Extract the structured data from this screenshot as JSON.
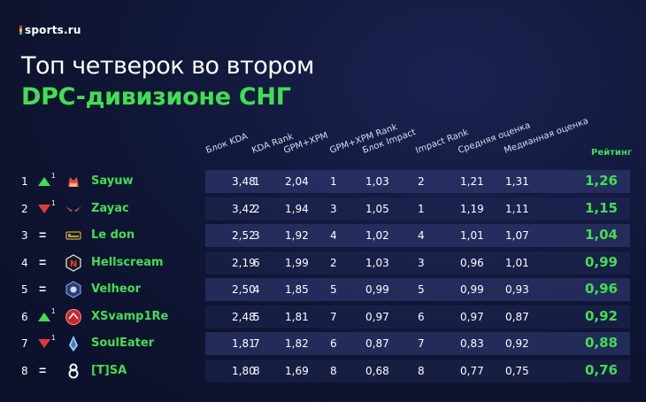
{
  "brand": {
    "name": "sports.ru"
  },
  "title": {
    "line1": "Топ четверок во втором",
    "line2": "DPC-дивизионе СНГ"
  },
  "columns": [
    "Блок KDA",
    "KDA Rank",
    "GPM+XPM",
    "GPM+XPM Rank",
    "Блок Impact",
    "Impact Rank",
    "Средняя оценка",
    "Медианная оценка"
  ],
  "rating_header": "Рейтинг",
  "colors": {
    "accent_green": "#3fe04f",
    "up": "#3fe04f",
    "down": "#e53935",
    "background": "#0f1533"
  },
  "rows": [
    {
      "rank": "1",
      "trend": "up",
      "delta": "1",
      "team_icon": "team-logo-icon",
      "player": "Sayuw",
      "values": [
        "3,48",
        "1",
        "2,04",
        "1",
        "1,03",
        "2",
        "1,21",
        "1,31"
      ],
      "rating": "1,26"
    },
    {
      "rank": "2",
      "trend": "down",
      "delta": "1",
      "team_icon": "team-logo-icon",
      "player": "Zayac",
      "values": [
        "3,42",
        "2",
        "1,94",
        "3",
        "1,05",
        "1",
        "1,19",
        "1,11"
      ],
      "rating": "1,15"
    },
    {
      "rank": "3",
      "trend": "same",
      "delta": "",
      "team_icon": "five-team-logo-icon",
      "player": "Le don",
      "values": [
        "2,52",
        "3",
        "1,92",
        "4",
        "1,02",
        "4",
        "1,01",
        "1,07"
      ],
      "rating": "1,04"
    },
    {
      "rank": "4",
      "trend": "same",
      "delta": "",
      "team_icon": "nigma-logo-icon",
      "player": "Hellscream",
      "values": [
        "2,19",
        "6",
        "1,99",
        "2",
        "1,03",
        "3",
        "0,96",
        "1,01"
      ],
      "rating": "0,99"
    },
    {
      "rank": "5",
      "trend": "same",
      "delta": "",
      "team_icon": "team-logo-icon",
      "player": "Velheor",
      "values": [
        "2,50",
        "4",
        "1,85",
        "5",
        "0,99",
        "5",
        "0,99",
        "0,93"
      ],
      "rating": "0,96"
    },
    {
      "rank": "6",
      "trend": "up",
      "delta": "1",
      "team_icon": "team-logo-icon",
      "player": "XSvamp1Re",
      "values": [
        "2,48",
        "5",
        "1,81",
        "7",
        "0,97",
        "6",
        "0,97",
        "0,87"
      ],
      "rating": "0,92"
    },
    {
      "rank": "7",
      "trend": "down",
      "delta": "1",
      "team_icon": "team-logo-icon",
      "player": "SoulEater",
      "values": [
        "1,81",
        "7",
        "1,82",
        "6",
        "0,87",
        "7",
        "0,83",
        "0,92"
      ],
      "rating": "0,88"
    },
    {
      "rank": "8",
      "trend": "same",
      "delta": "",
      "team_icon": "team-logo-icon",
      "player": "[T]SA",
      "values": [
        "1,80",
        "8",
        "1,69",
        "8",
        "0,68",
        "8",
        "0,77",
        "0,75"
      ],
      "rating": "0,76"
    }
  ]
}
